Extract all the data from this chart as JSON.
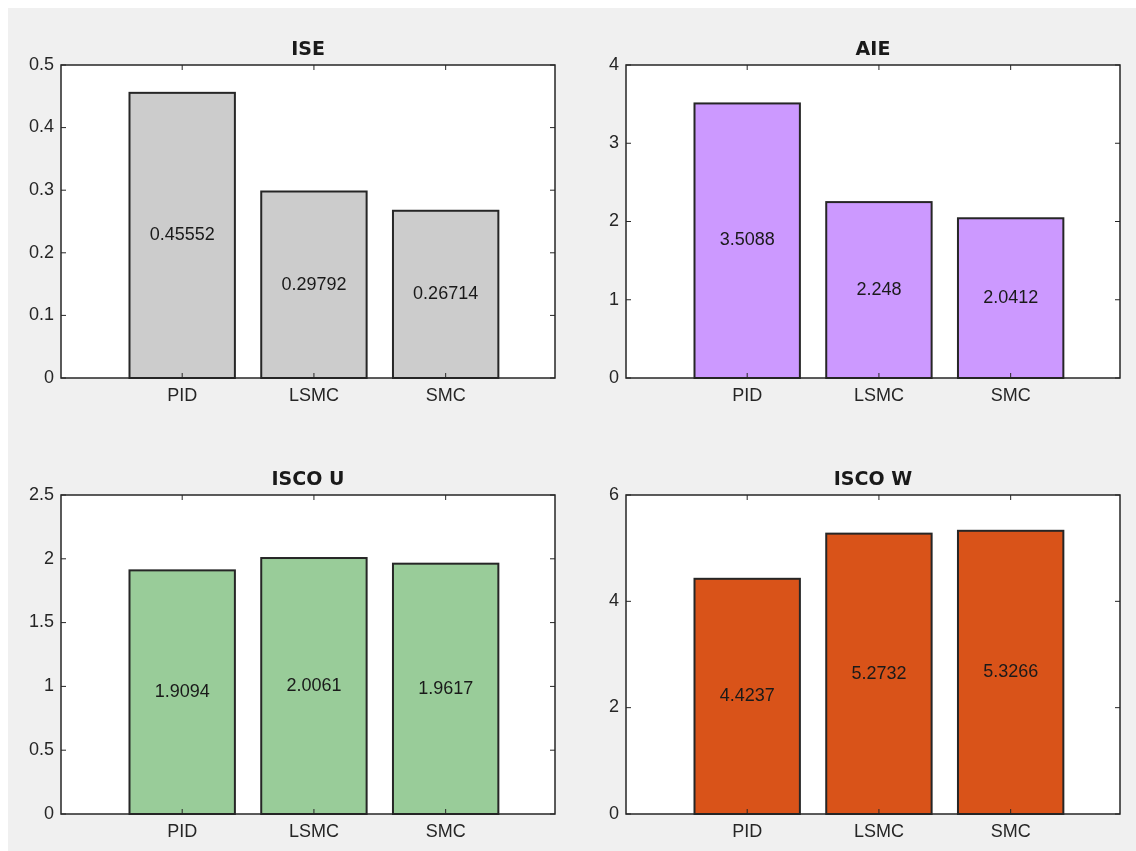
{
  "chart_data": [
    {
      "type": "bar",
      "title": "ISE",
      "categories": [
        "PID",
        "LSMC",
        "SMC"
      ],
      "values": [
        0.45552,
        0.29792,
        0.26714
      ],
      "color": "#cccccc",
      "ylim": [
        0,
        0.5
      ],
      "yticks": [
        0,
        0.1,
        0.2,
        0.3,
        0.4,
        0.5
      ],
      "data_labels": true
    },
    {
      "type": "bar",
      "title": "AIE",
      "categories": [
        "PID",
        "LSMC",
        "SMC"
      ],
      "values": [
        3.5088,
        2.248,
        2.0412
      ],
      "color": "#cc99ff",
      "ylim": [
        0,
        4
      ],
      "yticks": [
        0,
        1,
        2,
        3,
        4
      ],
      "data_labels": true
    },
    {
      "type": "bar",
      "title": "ISCO U",
      "categories": [
        "PID",
        "LSMC",
        "SMC"
      ],
      "values": [
        1.9094,
        2.0061,
        1.9617
      ],
      "color": "#99cc99",
      "ylim": [
        0,
        2.5
      ],
      "yticks": [
        0,
        0.5,
        1,
        1.5,
        2,
        2.5
      ],
      "data_labels": true
    },
    {
      "type": "bar",
      "title": "ISCO W",
      "categories": [
        "PID",
        "LSMC",
        "SMC"
      ],
      "values": [
        4.4237,
        5.2732,
        5.3266
      ],
      "color": "#d95319",
      "ylim": [
        0,
        6
      ],
      "yticks": [
        0,
        2,
        4,
        6
      ],
      "data_labels": true
    }
  ]
}
